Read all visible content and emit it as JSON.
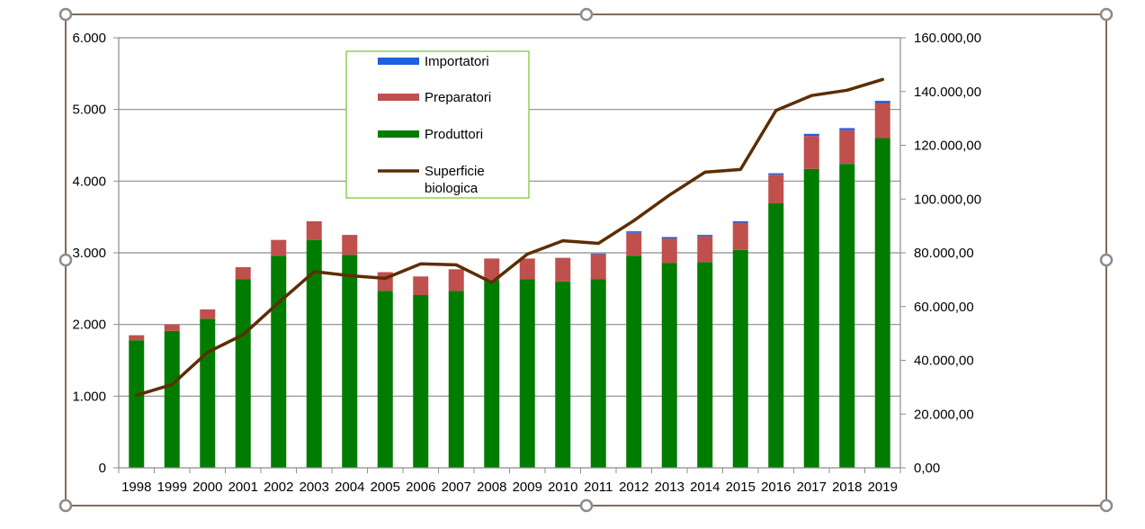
{
  "colors": {
    "frame": "#5a3a1e",
    "handle": "#8c8c8c",
    "grid": "#8c8c8c",
    "importatori": "#1f5fe0",
    "preparatori": "#c0504d",
    "produttori": "#007d00",
    "superficie": "#5c2e00",
    "legend_border": "#92d050"
  },
  "chart_data": {
    "type": "bar",
    "stacked": true,
    "categories": [
      "1998",
      "1999",
      "2000",
      "2001",
      "2002",
      "2003",
      "2004",
      "2005",
      "2006",
      "2007",
      "2008",
      "2009",
      "2010",
      "2011",
      "2012",
      "2013",
      "2014",
      "2015",
      "2016",
      "2017",
      "2018",
      "2019"
    ],
    "series": [
      {
        "name": "Produttori",
        "axis": "left",
        "values": [
          1780,
          1910,
          2080,
          2630,
          2960,
          3180,
          2970,
          2470,
          2410,
          2470,
          2620,
          2630,
          2600,
          2630,
          2960,
          2860,
          2870,
          3040,
          3690,
          4170,
          4240,
          4600
        ]
      },
      {
        "name": "Preparatori",
        "axis": "left",
        "values": [
          70,
          90,
          130,
          170,
          220,
          260,
          280,
          260,
          260,
          300,
          300,
          290,
          330,
          350,
          320,
          340,
          360,
          380,
          400,
          460,
          470,
          490
        ]
      },
      {
        "name": "Importatori",
        "axis": "left",
        "values": [
          0,
          0,
          0,
          0,
          0,
          0,
          0,
          0,
          0,
          0,
          0,
          0,
          0,
          10,
          20,
          20,
          20,
          20,
          20,
          30,
          30,
          30
        ]
      },
      {
        "name": "Superficie biologica",
        "type": "line",
        "axis": "right",
        "values": [
          27000,
          31000,
          43000,
          49500,
          61500,
          73000,
          71500,
          70500,
          75900,
          75500,
          69000,
          79500,
          84500,
          83500,
          92000,
          101500,
          110000,
          111000,
          133000,
          138500,
          140500,
          144500
        ]
      }
    ],
    "left_axis": {
      "ylim": [
        0,
        6000
      ],
      "ticks": [
        "0",
        "1.000",
        "2.000",
        "3.000",
        "4.000",
        "5.000",
        "6.000"
      ]
    },
    "right_axis": {
      "ylim": [
        0,
        160000
      ],
      "ticks": [
        "0,00",
        "20.000,00",
        "40.000,00",
        "60.000,00",
        "80.000,00",
        "100.000,00",
        "120.000,00",
        "140.000,00",
        "160.000,00"
      ]
    },
    "legend": {
      "placement": "top-center",
      "entries": [
        {
          "key": "importatori",
          "label": "Importatori"
        },
        {
          "key": "preparatori",
          "label": "Preparatori"
        },
        {
          "key": "produttori",
          "label": "Produttori"
        },
        {
          "key": "superficie",
          "label_lines": [
            "Superficie",
            "biologica"
          ]
        }
      ]
    },
    "grid": true
  }
}
